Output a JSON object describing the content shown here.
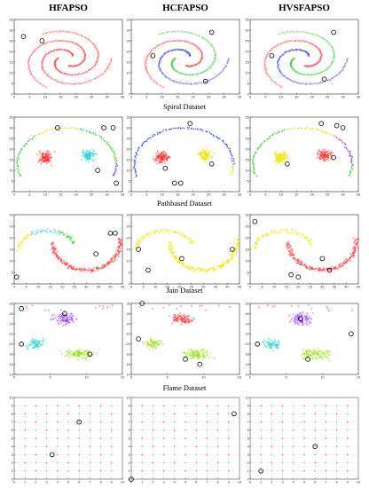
{
  "figure": {
    "column_titles": [
      "HFAPSO",
      "HCFAPSO",
      "HVSFAPSO"
    ],
    "row_captions": [
      "Spiral Dataset",
      "Pathbased Dataset",
      "Jain Dataset",
      "Flame Dataset",
      ""
    ]
  },
  "palette": {
    "red": "#ff2a2a",
    "green": "#22cc22",
    "blue": "#2a2aff",
    "yellow": "#e6e600",
    "cyan": "#20d0d0",
    "magenta": "#cc33cc",
    "purple": "#9933ff",
    "lime": "#99dd11",
    "center": "#000000"
  },
  "chart_data": [
    {
      "type": "scatter",
      "dataset": "spiral",
      "algorithm": "HFAPSO",
      "xlim": [
        0,
        35
      ],
      "ylim": [
        0,
        35
      ],
      "xticks": [
        0,
        5,
        10,
        15,
        20,
        25,
        30,
        35
      ],
      "yticks": [
        0,
        5,
        10,
        15,
        20,
        25,
        30,
        35
      ],
      "arm_colors": [
        "red",
        "red",
        "red"
      ],
      "centers": [
        [
          3,
          27
        ],
        [
          9,
          25
        ]
      ]
    },
    {
      "type": "scatter",
      "dataset": "spiral",
      "algorithm": "HCFAPSO",
      "xlim": [
        0,
        35
      ],
      "ylim": [
        0,
        35
      ],
      "xticks": [
        0,
        5,
        10,
        15,
        20,
        25,
        30,
        35
      ],
      "yticks": [
        0,
        5,
        10,
        15,
        20,
        25,
        30,
        35
      ],
      "arm_colors": [
        "blue",
        "green",
        "red"
      ],
      "centers": [
        [
          26,
          29
        ],
        [
          7,
          18
        ],
        [
          24,
          6
        ]
      ]
    },
    {
      "type": "scatter",
      "dataset": "spiral",
      "algorithm": "HVSFAPSO",
      "xlim": [
        0,
        35
      ],
      "ylim": [
        0,
        35
      ],
      "xticks": [
        0,
        5,
        10,
        15,
        20,
        25,
        30,
        35
      ],
      "yticks": [
        0,
        5,
        10,
        15,
        20,
        25,
        30,
        35
      ],
      "arm_colors": [
        "blue",
        "green",
        "red"
      ],
      "centers": [
        [
          27,
          29
        ],
        [
          7,
          18
        ],
        [
          24,
          7
        ]
      ]
    },
    {
      "type": "scatter",
      "dataset": "pathbased",
      "algorithm": "HFAPSO",
      "xlim": [
        0,
        35
      ],
      "ylim": [
        0,
        35
      ],
      "xticks": [
        0,
        5,
        10,
        15,
        20,
        25,
        30,
        35
      ],
      "yticks": [
        0,
        5,
        10,
        15,
        20,
        25,
        30,
        35
      ],
      "blob_left": "red",
      "blob_right": "cyan",
      "ring_segments": [
        {
          "from": 180,
          "to": 130,
          "color": "green"
        },
        {
          "from": 130,
          "to": 75,
          "color": "yellow"
        },
        {
          "from": 75,
          "to": 0,
          "color": "green"
        },
        {
          "from": 360,
          "to": 340,
          "color": "blue"
        }
      ],
      "centers": [
        [
          14,
          30
        ],
        [
          29,
          30
        ],
        [
          32,
          30
        ],
        [
          27,
          10
        ],
        [
          33,
          4
        ]
      ]
    },
    {
      "type": "scatter",
      "dataset": "pathbased",
      "algorithm": "HCFAPSO",
      "xlim": [
        0,
        35
      ],
      "ylim": [
        0,
        35
      ],
      "xticks": [
        0,
        5,
        10,
        15,
        20,
        25,
        30,
        35
      ],
      "yticks": [
        0,
        5,
        10,
        15,
        20,
        25,
        30,
        35
      ],
      "blob_left": "red",
      "blob_right": "yellow",
      "ring_segments": [
        {
          "from": 180,
          "to": 0,
          "color": "blue"
        },
        {
          "from": 360,
          "to": 340,
          "color": "yellow"
        }
      ],
      "centers": [
        [
          19,
          32
        ],
        [
          11,
          11
        ],
        [
          14,
          4
        ],
        [
          16,
          4
        ],
        [
          26,
          13
        ]
      ]
    },
    {
      "type": "scatter",
      "dataset": "pathbased",
      "algorithm": "HVSFAPSO",
      "xlim": [
        0,
        35
      ],
      "ylim": [
        0,
        35
      ],
      "xticks": [
        0,
        5,
        10,
        15,
        20,
        25,
        30,
        35
      ],
      "yticks": [
        0,
        5,
        10,
        15,
        20,
        25,
        30,
        35
      ],
      "blob_left": "yellow",
      "blob_right": "red",
      "ring_segments": [
        {
          "from": 180,
          "to": 110,
          "color": "green"
        },
        {
          "from": 110,
          "to": 50,
          "color": "yellow"
        },
        {
          "from": 50,
          "to": 20,
          "color": "magenta"
        },
        {
          "from": 20,
          "to": 0,
          "color": "blue"
        }
      ],
      "centers": [
        [
          23,
          32
        ],
        [
          28,
          31
        ],
        [
          30,
          30
        ],
        [
          27,
          16
        ],
        [
          12,
          13
        ]
      ]
    },
    {
      "type": "scatter",
      "dataset": "jain",
      "algorithm": "HFAPSO",
      "xlim": [
        0,
        45
      ],
      "ylim": [
        0,
        30
      ],
      "xticks": [
        0,
        5,
        10,
        15,
        20,
        25,
        30,
        35,
        40,
        45
      ],
      "yticks": [
        0,
        5,
        10,
        15,
        20,
        25,
        30
      ],
      "upper_colors": [
        "green",
        "cyan",
        "yellow"
      ],
      "lower_color": "red",
      "centers": [
        [
          40,
          22
        ],
        [
          42,
          22
        ],
        [
          34,
          13
        ],
        [
          1,
          3
        ]
      ]
    },
    {
      "type": "scatter",
      "dataset": "jain",
      "algorithm": "HCFAPSO",
      "xlim": [
        0,
        45
      ],
      "ylim": [
        0,
        30
      ],
      "xticks": [
        0,
        5,
        10,
        15,
        20,
        25,
        30,
        35,
        40,
        45
      ],
      "yticks": [
        0,
        5,
        10,
        15,
        20,
        25,
        30
      ],
      "upper_colors": [
        "yellow",
        "yellow",
        "yellow"
      ],
      "lower_color": "yellow",
      "centers": [
        [
          42,
          15
        ],
        [
          7,
          6
        ],
        [
          21,
          11
        ],
        [
          3,
          15
        ]
      ]
    },
    {
      "type": "scatter",
      "dataset": "jain",
      "algorithm": "HVSFAPSO",
      "xlim": [
        0,
        45
      ],
      "ylim": [
        0,
        30
      ],
      "xticks": [
        0,
        5,
        10,
        15,
        20,
        25,
        30,
        35,
        40,
        45
      ],
      "yticks": [
        0,
        5,
        10,
        15,
        20,
        25,
        30
      ],
      "upper_colors": [
        "yellow",
        "yellow",
        "yellow"
      ],
      "lower_color": "red",
      "centers": [
        [
          2,
          27
        ],
        [
          17,
          4
        ],
        [
          20,
          3
        ],
        [
          30,
          11
        ],
        [
          33,
          6
        ]
      ]
    },
    {
      "type": "scatter",
      "dataset": "flame",
      "algorithm": "HFAPSO",
      "xlim": [
        0,
        15
      ],
      "ylim": [
        14,
        28
      ],
      "xticks": [
        0,
        5,
        10,
        15
      ],
      "yticks": [
        14,
        16,
        18,
        20,
        22,
        24,
        26,
        28
      ],
      "cluster_colors": [
        "purple",
        "cyan",
        "lime"
      ],
      "outlier_color": "red",
      "centers": [
        [
          1,
          27
        ],
        [
          7,
          26
        ],
        [
          1,
          20
        ],
        [
          10.5,
          18
        ]
      ]
    },
    {
      "type": "scatter",
      "dataset": "flame",
      "algorithm": "HCFAPSO",
      "xlim": [
        0,
        15
      ],
      "ylim": [
        14,
        28
      ],
      "xticks": [
        0,
        5,
        10,
        15
      ],
      "yticks": [
        14,
        16,
        18,
        20,
        22,
        24,
        26,
        28
      ],
      "cluster_colors": [
        "red",
        "lime",
        "lime"
      ],
      "outlier_color": "red",
      "centers": [
        [
          1.5,
          28
        ],
        [
          1,
          21
        ],
        [
          7.5,
          17
        ],
        [
          9.5,
          16
        ]
      ]
    },
    {
      "type": "scatter",
      "dataset": "flame",
      "algorithm": "HVSFAPSO",
      "xlim": [
        0,
        15
      ],
      "ylim": [
        14,
        28
      ],
      "xticks": [
        0,
        5,
        10,
        15
      ],
      "yticks": [
        14,
        16,
        18,
        20,
        22,
        24,
        26,
        28
      ],
      "cluster_colors": [
        "purple",
        "cyan",
        "lime"
      ],
      "outlier_color": "red",
      "centers": [
        [
          7,
          25
        ],
        [
          1,
          20
        ],
        [
          14,
          22
        ],
        [
          8,
          17
        ]
      ]
    },
    {
      "type": "scatter",
      "dataset": "grid",
      "algorithm": "HFAPSO",
      "xlim": [
        0,
        10
      ],
      "ylim": [
        0,
        10
      ],
      "xticks": [
        0,
        1,
        2,
        3,
        4,
        5,
        6,
        7,
        8,
        9,
        10
      ],
      "yticks": [
        0,
        1,
        2,
        3,
        4,
        5,
        6,
        7,
        8,
        9,
        10
      ],
      "row_colors": [
        "cyan",
        "red"
      ],
      "centers": [
        [
          6,
          7
        ],
        [
          3.5,
          3
        ]
      ]
    },
    {
      "type": "scatter",
      "dataset": "grid",
      "algorithm": "HCFAPSO",
      "xlim": [
        0,
        10
      ],
      "ylim": [
        0,
        10
      ],
      "xticks": [
        0,
        1,
        2,
        3,
        4,
        5,
        6,
        7,
        8,
        9,
        10
      ],
      "yticks": [
        0,
        1,
        2,
        3,
        4,
        5,
        6,
        7,
        8,
        9,
        10
      ],
      "row_colors": [
        "red",
        "cyan"
      ],
      "centers": [
        [
          9.5,
          8
        ],
        [
          0,
          0
        ]
      ]
    },
    {
      "type": "scatter",
      "dataset": "grid",
      "algorithm": "HVSFAPSO",
      "xlim": [
        0,
        10
      ],
      "ylim": [
        0,
        10
      ],
      "xticks": [
        0,
        1,
        2,
        3,
        4,
        5,
        6,
        7,
        8,
        9,
        10
      ],
      "yticks": [
        0,
        1,
        2,
        3,
        4,
        5,
        6,
        7,
        8,
        9,
        10
      ],
      "row_colors": [
        "red",
        "cyan"
      ],
      "centers": [
        [
          6,
          4
        ],
        [
          1,
          1
        ]
      ]
    }
  ]
}
